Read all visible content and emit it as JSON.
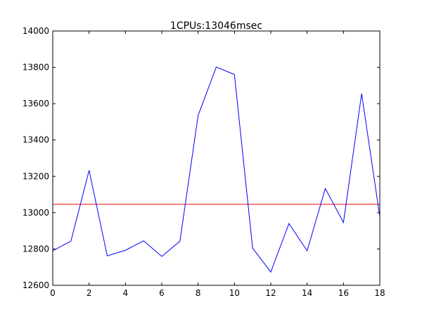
{
  "chart_data": {
    "type": "line",
    "title": "1CPUs:13046msec",
    "xlabel": "",
    "ylabel": "",
    "xlim": [
      0,
      18
    ],
    "ylim": [
      12600,
      14000
    ],
    "xticks": [
      0,
      2,
      4,
      6,
      8,
      10,
      12,
      14,
      16,
      18
    ],
    "yticks": [
      12600,
      12800,
      13000,
      13200,
      13400,
      13600,
      13800,
      14000
    ],
    "grid": false,
    "series": [
      {
        "color": "#0000ff",
        "x": [
          0,
          1,
          2,
          3,
          4,
          5,
          6,
          7,
          8,
          9,
          10,
          11,
          12,
          13,
          14,
          15,
          16,
          17,
          18
        ],
        "values": [
          12790,
          12843,
          13233,
          12762,
          12793,
          12845,
          12759,
          12843,
          13535,
          13802,
          13760,
          12805,
          12673,
          12940,
          12790,
          13133,
          12946,
          13655,
          12978
        ]
      }
    ],
    "hlines": [
      {
        "color": "#ff0000",
        "y": 13046
      }
    ]
  }
}
